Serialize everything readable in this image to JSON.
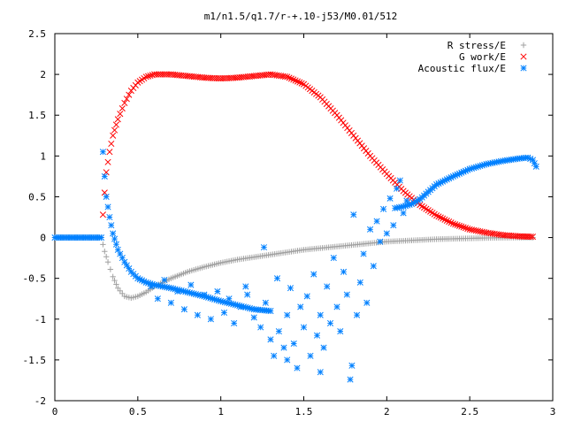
{
  "chart_data": {
    "type": "scatter",
    "title": "m1/n1.5/q1.7/r-+.10-j53/M0.01/512",
    "xlabel": "",
    "ylabel": "",
    "xlim": [
      0,
      3
    ],
    "ylim": [
      -2,
      2.5
    ],
    "xticks": [
      "0",
      "0.5",
      "1",
      "1.5",
      "2",
      "2.5",
      "3"
    ],
    "yticks": [
      "-2",
      "-1.5",
      "-1",
      "-0.5",
      "0",
      "0.5",
      "1",
      "1.5",
      "2",
      "2.5"
    ],
    "legend_position": "top-right",
    "grid": false,
    "series": [
      {
        "name": "R stress/E",
        "marker": "plus",
        "color": "#a0a0a0",
        "points": [
          [
            0.0,
            0.0
          ],
          [
            0.28,
            0.0
          ],
          [
            0.3,
            -0.17
          ],
          [
            0.32,
            -0.3
          ],
          [
            0.35,
            -0.48
          ],
          [
            0.38,
            -0.62
          ],
          [
            0.42,
            -0.72
          ],
          [
            0.46,
            -0.74
          ],
          [
            0.5,
            -0.72
          ],
          [
            0.55,
            -0.67
          ],
          [
            0.6,
            -0.6
          ],
          [
            0.7,
            -0.5
          ],
          [
            0.8,
            -0.42
          ],
          [
            0.9,
            -0.36
          ],
          [
            1.0,
            -0.31
          ],
          [
            1.1,
            -0.27
          ],
          [
            1.2,
            -0.24
          ],
          [
            1.3,
            -0.21
          ],
          [
            1.4,
            -0.18
          ],
          [
            1.5,
            -0.15
          ],
          [
            1.6,
            -0.13
          ],
          [
            1.7,
            -0.11
          ],
          [
            1.8,
            -0.09
          ],
          [
            1.9,
            -0.07
          ],
          [
            2.0,
            -0.05
          ],
          [
            2.1,
            -0.04
          ],
          [
            2.2,
            -0.03
          ],
          [
            2.3,
            -0.02
          ],
          [
            2.4,
            -0.015
          ],
          [
            2.5,
            -0.01
          ],
          [
            2.6,
            -0.005
          ],
          [
            2.7,
            -0.002
          ],
          [
            2.8,
            0.0
          ],
          [
            2.88,
            0.0
          ]
        ]
      },
      {
        "name": "G work/E",
        "marker": "cross",
        "color": "#ff0000",
        "points": [
          [
            0.29,
            0.28
          ],
          [
            0.3,
            0.55
          ],
          [
            0.31,
            0.8
          ],
          [
            0.33,
            1.05
          ],
          [
            0.35,
            1.25
          ],
          [
            0.38,
            1.45
          ],
          [
            0.42,
            1.65
          ],
          [
            0.46,
            1.8
          ],
          [
            0.5,
            1.9
          ],
          [
            0.55,
            1.97
          ],
          [
            0.6,
            2.0
          ],
          [
            0.7,
            2.0
          ],
          [
            0.8,
            1.98
          ],
          [
            0.9,
            1.96
          ],
          [
            1.0,
            1.95
          ],
          [
            1.1,
            1.96
          ],
          [
            1.2,
            1.98
          ],
          [
            1.3,
            2.0
          ],
          [
            1.4,
            1.97
          ],
          [
            1.5,
            1.88
          ],
          [
            1.6,
            1.72
          ],
          [
            1.7,
            1.5
          ],
          [
            1.8,
            1.25
          ],
          [
            1.9,
            1.0
          ],
          [
            2.0,
            0.78
          ],
          [
            2.1,
            0.57
          ],
          [
            2.2,
            0.4
          ],
          [
            2.3,
            0.27
          ],
          [
            2.4,
            0.17
          ],
          [
            2.5,
            0.1
          ],
          [
            2.6,
            0.06
          ],
          [
            2.7,
            0.03
          ],
          [
            2.8,
            0.015
          ],
          [
            2.88,
            0.01
          ]
        ]
      },
      {
        "name": "Acoustic flux/E",
        "marker": "star",
        "color": "#0080ff",
        "curve_points": [
          [
            0.0,
            0.0
          ],
          [
            0.28,
            0.0
          ],
          [
            0.29,
            1.05
          ],
          [
            0.3,
            0.75
          ],
          [
            0.31,
            0.5
          ],
          [
            0.33,
            0.25
          ],
          [
            0.35,
            0.05
          ],
          [
            0.38,
            -0.15
          ],
          [
            0.42,
            -0.3
          ],
          [
            0.46,
            -0.42
          ],
          [
            0.5,
            -0.5
          ],
          [
            0.55,
            -0.55
          ],
          [
            0.6,
            -0.58
          ],
          [
            0.7,
            -0.62
          ],
          [
            0.8,
            -0.67
          ],
          [
            0.9,
            -0.72
          ],
          [
            1.0,
            -0.78
          ],
          [
            1.1,
            -0.83
          ],
          [
            1.2,
            -0.88
          ],
          [
            1.3,
            -0.9
          ],
          [
            2.05,
            0.36
          ],
          [
            2.1,
            0.38
          ],
          [
            2.15,
            0.41
          ],
          [
            2.2,
            0.47
          ],
          [
            2.25,
            0.56
          ],
          [
            2.3,
            0.65
          ],
          [
            2.4,
            0.75
          ],
          [
            2.5,
            0.84
          ],
          [
            2.6,
            0.9
          ],
          [
            2.7,
            0.94
          ],
          [
            2.8,
            0.97
          ],
          [
            2.85,
            0.98
          ],
          [
            2.88,
            0.95
          ],
          [
            2.9,
            0.87
          ]
        ],
        "noise_points": [
          [
            0.58,
            -0.6
          ],
          [
            0.62,
            -0.75
          ],
          [
            0.66,
            -0.52
          ],
          [
            0.7,
            -0.8
          ],
          [
            0.74,
            -0.66
          ],
          [
            0.78,
            -0.88
          ],
          [
            0.82,
            -0.58
          ],
          [
            0.86,
            -0.95
          ],
          [
            0.9,
            -0.7
          ],
          [
            0.94,
            -1.0
          ],
          [
            0.98,
            -0.66
          ],
          [
            1.02,
            -0.92
          ],
          [
            1.05,
            -0.75
          ],
          [
            1.08,
            -1.05
          ],
          [
            1.12,
            -0.85
          ],
          [
            1.16,
            -0.7
          ],
          [
            1.2,
            -0.98
          ],
          [
            1.24,
            -1.1
          ],
          [
            1.27,
            -0.8
          ],
          [
            1.3,
            -1.25
          ],
          [
            1.32,
            -1.45
          ],
          [
            1.34,
            -0.5
          ],
          [
            1.35,
            -1.15
          ],
          [
            1.38,
            -1.35
          ],
          [
            1.4,
            -0.95
          ],
          [
            1.42,
            -0.62
          ],
          [
            1.44,
            -1.3
          ],
          [
            1.46,
            -1.6
          ],
          [
            1.48,
            -0.85
          ],
          [
            1.5,
            -1.1
          ],
          [
            1.52,
            -0.72
          ],
          [
            1.54,
            -1.45
          ],
          [
            1.56,
            -0.45
          ],
          [
            1.58,
            -1.2
          ],
          [
            1.6,
            -0.95
          ],
          [
            1.62,
            -1.35
          ],
          [
            1.64,
            -0.6
          ],
          [
            1.66,
            -1.05
          ],
          [
            1.68,
            -0.25
          ],
          [
            1.7,
            -0.85
          ],
          [
            1.72,
            -1.15
          ],
          [
            1.74,
            -0.42
          ],
          [
            1.76,
            -0.7
          ],
          [
            1.78,
            -1.74
          ],
          [
            1.8,
            0.28
          ],
          [
            1.82,
            -0.95
          ],
          [
            1.84,
            -0.55
          ],
          [
            1.86,
            -0.2
          ],
          [
            1.88,
            -0.8
          ],
          [
            1.9,
            0.1
          ],
          [
            1.92,
            -0.35
          ],
          [
            1.94,
            0.2
          ],
          [
            1.96,
            -0.05
          ],
          [
            1.98,
            0.35
          ],
          [
            2.0,
            0.05
          ],
          [
            2.02,
            0.48
          ],
          [
            2.04,
            0.15
          ],
          [
            2.06,
            0.6
          ],
          [
            2.08,
            0.7
          ],
          [
            2.1,
            0.3
          ],
          [
            2.12,
            0.45
          ],
          [
            1.26,
            -0.12
          ],
          [
            1.15,
            -0.6
          ],
          [
            1.4,
            -1.5
          ],
          [
            1.6,
            -1.65
          ],
          [
            1.79,
            -1.57
          ]
        ]
      }
    ]
  }
}
